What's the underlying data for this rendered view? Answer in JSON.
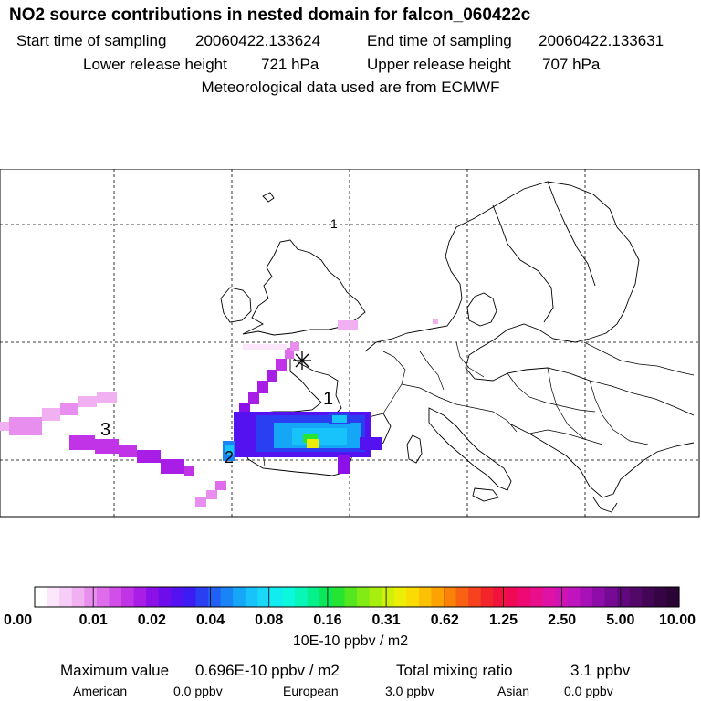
{
  "header": {
    "title": "NO2 source contributions in nested domain for falcon_060422c",
    "start_label": "Start time of sampling",
    "start_value": "20060422.133624",
    "end_label": "End time of sampling",
    "end_value": "20060422.133631",
    "lower_label": "Lower release height",
    "lower_value": "721 hPa",
    "upper_label": "Upper release height",
    "upper_value": "707 hPa",
    "met_line": "Meteorological data used are from ECMWF"
  },
  "map": {
    "time_labels": [
      "1",
      "1",
      "2",
      "3"
    ],
    "grid_lines": "dashed"
  },
  "colorbar": {
    "ticks": [
      "0.00",
      "0.01",
      "0.02",
      "0.04",
      "0.08",
      "0.16",
      "0.31",
      "0.62",
      "1.25",
      "2.50",
      "5.00",
      "10.00"
    ],
    "unit": "10E-10 ppbv / m2",
    "colors": [
      "#ffffff",
      "#fbe6fb",
      "#f6cdf6",
      "#f0b0f2",
      "#e88eee",
      "#df6ceb",
      "#d24ee8",
      "#c133e6",
      "#a91ee6",
      "#8c10e8",
      "#6e0cec",
      "#5512f0",
      "#3c1cf2",
      "#2a3ef2",
      "#2060f4",
      "#1a84f6",
      "#16a6f8",
      "#18c2fa",
      "#1ad8f8",
      "#10ecf0",
      "#0cf8dc",
      "#08f6b8",
      "#06f08c",
      "#0ae85a",
      "#26e432",
      "#54e61e",
      "#82ea14",
      "#a8ee0e",
      "#cef00a",
      "#ecee06",
      "#fadc04",
      "#fcc004",
      "#fca202",
      "#fa8208",
      "#f86212",
      "#f6421e",
      "#f4242c",
      "#f2123e",
      "#f00a56",
      "#ee0a72",
      "#e80e8c",
      "#de12a4",
      "#d014b4",
      "#c014be",
      "#a810b8",
      "#8e0ca8",
      "#760a94",
      "#62087e",
      "#520868",
      "#420654",
      "#360444",
      "#2a0434"
    ]
  },
  "stats": {
    "max_label": "Maximum value",
    "max_value": "0.696E-10 ppbv / m2",
    "total_label": "Total mixing ratio",
    "total_value": "3.1 ppbv",
    "american_label": "American",
    "american_value": "0.0 ppbv",
    "european_label": "European",
    "european_value": "3.0 ppbv",
    "asian_label": "Asian",
    "asian_value": "0.0 ppbv"
  }
}
